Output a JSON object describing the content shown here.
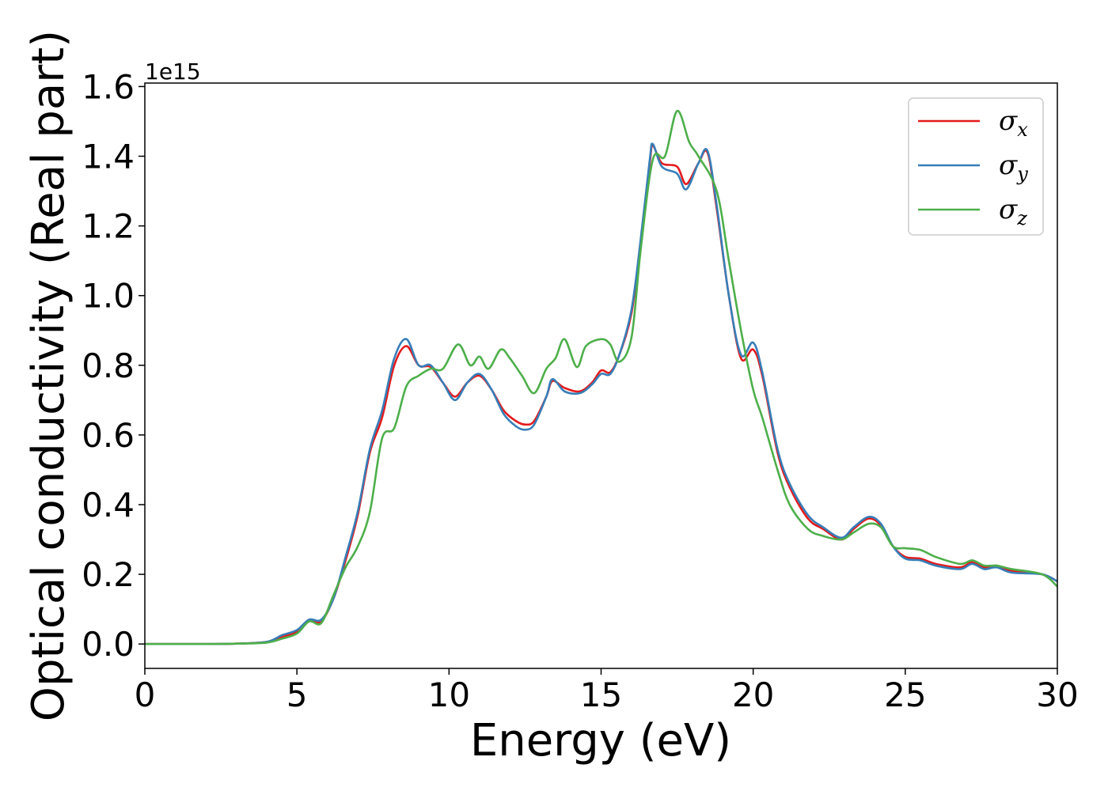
{
  "chart_data": {
    "type": "line",
    "title": "",
    "xlabel": "Energy (eV)",
    "ylabel": "Optical conductivity (Real part)",
    "y_offset_text": "1e15",
    "xlim": [
      0,
      30
    ],
    "ylim": [
      -0.07,
      1.61
    ],
    "x_ticks": [
      0,
      5,
      10,
      15,
      20,
      25,
      30
    ],
    "x_tick_labels": [
      "0",
      "5",
      "10",
      "15",
      "20",
      "25",
      "30"
    ],
    "y_ticks": [
      0.0,
      0.2,
      0.4,
      0.6,
      0.8,
      1.0,
      1.2,
      1.4,
      1.6
    ],
    "y_tick_labels": [
      "0.0",
      "0.2",
      "0.4",
      "0.6",
      "0.8",
      "1.0",
      "1.2",
      "1.4",
      "1.6"
    ],
    "grid": false,
    "legend_position": "top-right",
    "series": [
      {
        "name": "σx",
        "name_base": "σ",
        "name_sub": "x",
        "color": "#e41a1c",
        "points": [
          [
            0,
            0
          ],
          [
            2,
            0
          ],
          [
            3,
            0.001
          ],
          [
            4,
            0.006
          ],
          [
            4.5,
            0.02
          ],
          [
            5,
            0.035
          ],
          [
            5.4,
            0.065
          ],
          [
            5.8,
            0.065
          ],
          [
            6.2,
            0.13
          ],
          [
            6.6,
            0.24
          ],
          [
            7,
            0.37
          ],
          [
            7.4,
            0.55
          ],
          [
            7.8,
            0.65
          ],
          [
            8.2,
            0.8
          ],
          [
            8.6,
            0.855
          ],
          [
            9,
            0.8
          ],
          [
            9.4,
            0.795
          ],
          [
            9.8,
            0.75
          ],
          [
            10.2,
            0.71
          ],
          [
            10.6,
            0.75
          ],
          [
            11,
            0.77
          ],
          [
            11.4,
            0.73
          ],
          [
            11.8,
            0.67
          ],
          [
            12.2,
            0.64
          ],
          [
            12.5,
            0.63
          ],
          [
            12.8,
            0.64
          ],
          [
            13.2,
            0.71
          ],
          [
            13.4,
            0.755
          ],
          [
            13.8,
            0.735
          ],
          [
            14.3,
            0.725
          ],
          [
            14.7,
            0.75
          ],
          [
            15,
            0.785
          ],
          [
            15.3,
            0.78
          ],
          [
            15.6,
            0.83
          ],
          [
            16,
            0.95
          ],
          [
            16.3,
            1.15
          ],
          [
            16.6,
            1.38
          ],
          [
            16.7,
            1.43
          ],
          [
            17,
            1.38
          ],
          [
            17.5,
            1.37
          ],
          [
            17.8,
            1.32
          ],
          [
            18.2,
            1.38
          ],
          [
            18.5,
            1.41
          ],
          [
            18.8,
            1.25
          ],
          [
            19.2,
            1.0
          ],
          [
            19.6,
            0.82
          ],
          [
            20,
            0.845
          ],
          [
            20.3,
            0.77
          ],
          [
            20.8,
            0.55
          ],
          [
            21.2,
            0.45
          ],
          [
            21.8,
            0.36
          ],
          [
            22.3,
            0.33
          ],
          [
            22.9,
            0.3
          ],
          [
            23.3,
            0.33
          ],
          [
            23.8,
            0.36
          ],
          [
            24.2,
            0.34
          ],
          [
            24.6,
            0.28
          ],
          [
            25,
            0.25
          ],
          [
            25.5,
            0.245
          ],
          [
            26,
            0.23
          ],
          [
            26.8,
            0.22
          ],
          [
            27.2,
            0.235
          ],
          [
            27.6,
            0.22
          ],
          [
            28,
            0.225
          ],
          [
            28.5,
            0.21
          ],
          [
            29.5,
            0.2
          ],
          [
            30,
            0.18
          ]
        ]
      },
      {
        "name": "σy",
        "name_base": "σ",
        "name_sub": "y",
        "color": "#377eb8",
        "points": [
          [
            0,
            0
          ],
          [
            2,
            0
          ],
          [
            3,
            0.001
          ],
          [
            4,
            0.006
          ],
          [
            4.5,
            0.025
          ],
          [
            5,
            0.04
          ],
          [
            5.4,
            0.07
          ],
          [
            5.8,
            0.07
          ],
          [
            6.2,
            0.13
          ],
          [
            6.6,
            0.25
          ],
          [
            7,
            0.38
          ],
          [
            7.4,
            0.56
          ],
          [
            7.8,
            0.67
          ],
          [
            8.2,
            0.82
          ],
          [
            8.6,
            0.875
          ],
          [
            9,
            0.8
          ],
          [
            9.4,
            0.8
          ],
          [
            9.8,
            0.75
          ],
          [
            10.2,
            0.7
          ],
          [
            10.6,
            0.75
          ],
          [
            11,
            0.775
          ],
          [
            11.4,
            0.73
          ],
          [
            11.8,
            0.66
          ],
          [
            12.2,
            0.625
          ],
          [
            12.5,
            0.615
          ],
          [
            12.8,
            0.63
          ],
          [
            13.2,
            0.71
          ],
          [
            13.4,
            0.76
          ],
          [
            13.8,
            0.725
          ],
          [
            14.3,
            0.72
          ],
          [
            14.7,
            0.745
          ],
          [
            15,
            0.775
          ],
          [
            15.3,
            0.775
          ],
          [
            15.6,
            0.83
          ],
          [
            16,
            0.96
          ],
          [
            16.3,
            1.16
          ],
          [
            16.6,
            1.39
          ],
          [
            16.7,
            1.435
          ],
          [
            17,
            1.37
          ],
          [
            17.5,
            1.35
          ],
          [
            17.8,
            1.305
          ],
          [
            18.2,
            1.38
          ],
          [
            18.5,
            1.415
          ],
          [
            18.8,
            1.26
          ],
          [
            19.2,
            1.0
          ],
          [
            19.6,
            0.83
          ],
          [
            20,
            0.865
          ],
          [
            20.3,
            0.78
          ],
          [
            20.8,
            0.56
          ],
          [
            21.2,
            0.46
          ],
          [
            21.8,
            0.37
          ],
          [
            22.3,
            0.335
          ],
          [
            22.9,
            0.305
          ],
          [
            23.3,
            0.335
          ],
          [
            23.8,
            0.365
          ],
          [
            24.2,
            0.345
          ],
          [
            24.6,
            0.28
          ],
          [
            25,
            0.245
          ],
          [
            25.5,
            0.24
          ],
          [
            26,
            0.225
          ],
          [
            26.8,
            0.215
          ],
          [
            27.2,
            0.23
          ],
          [
            27.6,
            0.215
          ],
          [
            28,
            0.22
          ],
          [
            28.5,
            0.205
          ],
          [
            29.5,
            0.2
          ],
          [
            30,
            0.18
          ]
        ]
      },
      {
        "name": "σz",
        "name_base": "σ",
        "name_sub": "z",
        "color": "#4daf4a",
        "points": [
          [
            0,
            0
          ],
          [
            2,
            0
          ],
          [
            3,
            0.001
          ],
          [
            4,
            0.004
          ],
          [
            4.5,
            0.015
          ],
          [
            5,
            0.03
          ],
          [
            5.4,
            0.065
          ],
          [
            5.8,
            0.06
          ],
          [
            6.2,
            0.14
          ],
          [
            6.6,
            0.22
          ],
          [
            7,
            0.28
          ],
          [
            7.4,
            0.38
          ],
          [
            7.8,
            0.59
          ],
          [
            8.2,
            0.62
          ],
          [
            8.6,
            0.74
          ],
          [
            9,
            0.77
          ],
          [
            9.4,
            0.79
          ],
          [
            9.8,
            0.79
          ],
          [
            10.3,
            0.86
          ],
          [
            10.7,
            0.8
          ],
          [
            11,
            0.825
          ],
          [
            11.3,
            0.79
          ],
          [
            11.7,
            0.845
          ],
          [
            12,
            0.82
          ],
          [
            12.4,
            0.77
          ],
          [
            12.8,
            0.72
          ],
          [
            13.2,
            0.79
          ],
          [
            13.5,
            0.82
          ],
          [
            13.8,
            0.875
          ],
          [
            14.2,
            0.795
          ],
          [
            14.5,
            0.855
          ],
          [
            15,
            0.875
          ],
          [
            15.3,
            0.86
          ],
          [
            15.6,
            0.81
          ],
          [
            16,
            0.88
          ],
          [
            16.3,
            1.13
          ],
          [
            16.7,
            1.39
          ],
          [
            17.1,
            1.4
          ],
          [
            17.5,
            1.53
          ],
          [
            17.9,
            1.44
          ],
          [
            18.2,
            1.4
          ],
          [
            18.8,
            1.3
          ],
          [
            19.2,
            1.1
          ],
          [
            19.6,
            0.9
          ],
          [
            20,
            0.73
          ],
          [
            20.3,
            0.65
          ],
          [
            20.8,
            0.5
          ],
          [
            21.2,
            0.4
          ],
          [
            21.8,
            0.33
          ],
          [
            22.3,
            0.31
          ],
          [
            22.9,
            0.3
          ],
          [
            23.3,
            0.32
          ],
          [
            23.8,
            0.345
          ],
          [
            24.2,
            0.335
          ],
          [
            24.6,
            0.28
          ],
          [
            25,
            0.275
          ],
          [
            25.5,
            0.27
          ],
          [
            26,
            0.25
          ],
          [
            26.8,
            0.23
          ],
          [
            27.2,
            0.24
          ],
          [
            27.6,
            0.225
          ],
          [
            28,
            0.225
          ],
          [
            28.5,
            0.215
          ],
          [
            29.5,
            0.2
          ],
          [
            30,
            0.165
          ]
        ]
      }
    ]
  }
}
